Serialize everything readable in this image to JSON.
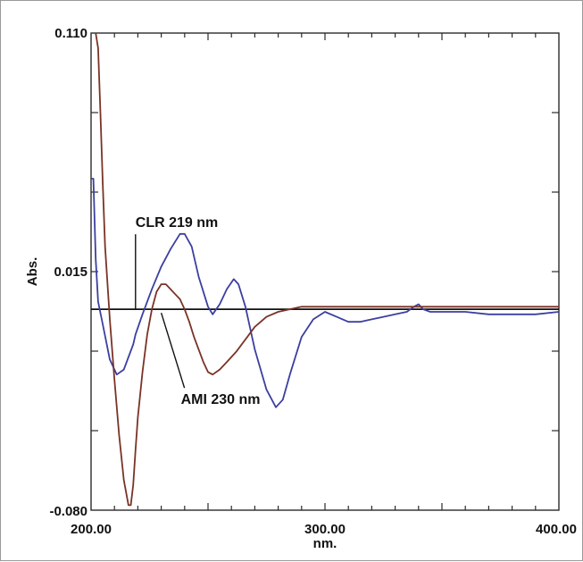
{
  "chart_data": {
    "type": "line",
    "title": "",
    "xlabel": "nm.",
    "ylabel": "Abs.",
    "xlim": [
      200,
      400
    ],
    "ylim": [
      -0.08,
      0.11
    ],
    "grid": false,
    "x_tick_labels": [
      "200.00",
      "300.00",
      "400.00"
    ],
    "y_tick_labels": [
      "0.110",
      "0.015",
      "-0.080"
    ],
    "baseline": 0.0,
    "series": [
      {
        "color": "#3b3fa0",
        "x": [
          200,
          201,
          202,
          203,
          205,
          208,
          211,
          214,
          218,
          219,
          222,
          226,
          230,
          234,
          238,
          240,
          243,
          246,
          250,
          252,
          255,
          258,
          261,
          263,
          266,
          270,
          275,
          279,
          282,
          285,
          290,
          295,
          300,
          305,
          310,
          315,
          320,
          325,
          330,
          335,
          338,
          340,
          342,
          345,
          350,
          360,
          370,
          380,
          390,
          400
        ],
        "y": [
          0.052,
          0.052,
          0.02,
          0.003,
          -0.006,
          -0.02,
          -0.026,
          -0.024,
          -0.014,
          -0.01,
          -0.002,
          0.008,
          0.017,
          0.024,
          0.03,
          0.03,
          0.025,
          0.013,
          0.001,
          -0.002,
          0.002,
          0.008,
          0.012,
          0.01,
          0.001,
          -0.016,
          -0.032,
          -0.039,
          -0.036,
          -0.026,
          -0.011,
          -0.004,
          -0.001,
          -0.003,
          -0.005,
          -0.005,
          -0.004,
          -0.003,
          -0.002,
          -0.001,
          0.001,
          0.002,
          0.0,
          -0.001,
          -0.001,
          -0.001,
          -0.002,
          -0.002,
          -0.002,
          -0.001
        ]
      },
      {
        "color": "#7a3326",
        "x": [
          202,
          203,
          204,
          205,
          206,
          208,
          210,
          212,
          214,
          216,
          217,
          218,
          219,
          220,
          222,
          224,
          226,
          228,
          230,
          232,
          234,
          236,
          238,
          240,
          242,
          244,
          246,
          248,
          250,
          252,
          255,
          258,
          262,
          266,
          270,
          275,
          280,
          290,
          300,
          320,
          340,
          360,
          380,
          400
        ],
        "y": [
          0.11,
          0.104,
          0.078,
          0.05,
          0.025,
          -0.004,
          -0.028,
          -0.05,
          -0.068,
          -0.078,
          -0.078,
          -0.07,
          -0.056,
          -0.043,
          -0.025,
          -0.01,
          0.0,
          0.007,
          0.01,
          0.01,
          0.008,
          0.006,
          0.004,
          0.0,
          -0.005,
          -0.011,
          -0.016,
          -0.021,
          -0.025,
          -0.026,
          -0.024,
          -0.021,
          -0.017,
          -0.012,
          -0.007,
          -0.003,
          -0.001,
          0.001,
          0.001,
          0.001,
          0.001,
          0.001,
          0.001,
          0.001
        ]
      }
    ],
    "annotations": [
      {
        "text": "CLR 219 nm",
        "x": 219,
        "y": 0.0
      },
      {
        "text": "AMI 230 nm",
        "x": 230,
        "y": 0.0
      }
    ]
  }
}
